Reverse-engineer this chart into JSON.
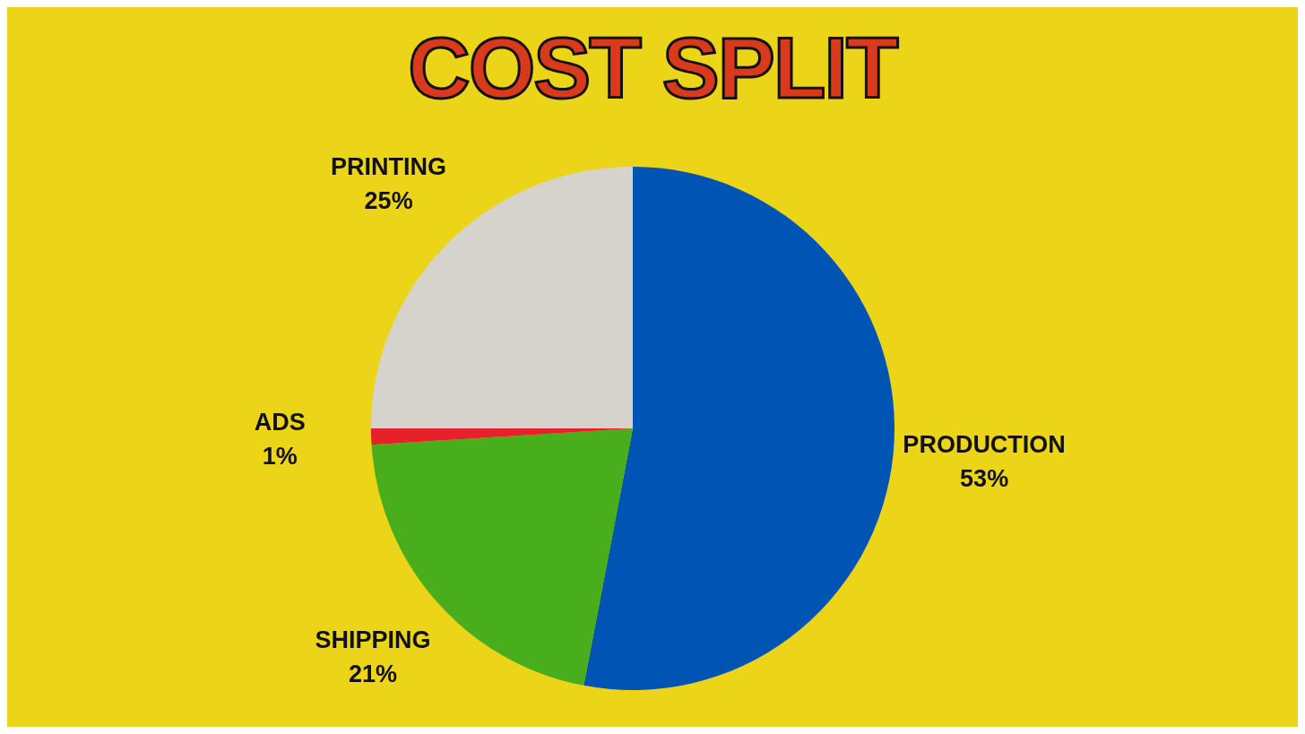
{
  "chart_data": {
    "type": "pie",
    "title": "COST SPLIT",
    "categories": [
      "PRODUCTION",
      "SHIPPING",
      "ADS",
      "PRINTING"
    ],
    "values": [
      53,
      21,
      1,
      25
    ],
    "value_labels": [
      "53%",
      "21%",
      "1%",
      "25%"
    ],
    "colors": [
      "#0055b4",
      "#48ae1b",
      "#e8202a",
      "#d6d3cc"
    ],
    "legend": false
  }
}
